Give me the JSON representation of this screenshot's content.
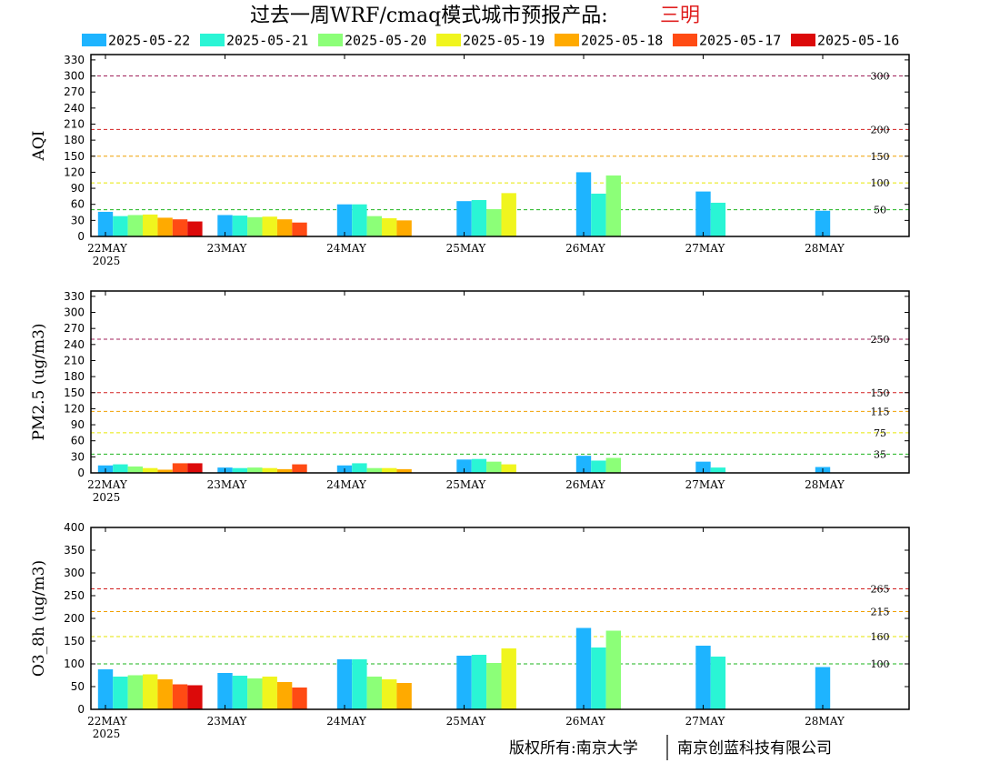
{
  "title": {
    "main": "过去一周WRF/cmaq模式城市预报产品:",
    "city": "三明",
    "city_color": "#e02020"
  },
  "footer": {
    "left": "版权所有:南京大学",
    "right": "南京创蓝科技有限公司"
  },
  "chart_data": {
    "type": "bar",
    "legend_placement": "top",
    "categories": [
      "22MAY",
      "23MAY",
      "24MAY",
      "25MAY",
      "26MAY",
      "27MAY",
      "28MAY"
    ],
    "year_label": "2025",
    "series": [
      {
        "name": "2025-05-22",
        "color": "#1eb4ff"
      },
      {
        "name": "2025-05-21",
        "color": "#2af5d5"
      },
      {
        "name": "2025-05-20",
        "color": "#8cff78"
      },
      {
        "name": "2025-05-19",
        "color": "#f0f51e"
      },
      {
        "name": "2025-05-18",
        "color": "#ffaa00"
      },
      {
        "name": "2025-05-17",
        "color": "#ff4b14"
      },
      {
        "name": "2025-05-16",
        "color": "#dc0a0a"
      }
    ],
    "panels": [
      {
        "ylabel": "AQI",
        "ylim": [
          0,
          340
        ],
        "yticks": [
          0,
          30,
          60,
          90,
          120,
          150,
          180,
          210,
          240,
          270,
          300,
          330
        ],
        "ref_lines": [
          {
            "value": 300,
            "label": "300",
            "color": "#a0205a"
          },
          {
            "value": 200,
            "label": "200",
            "color": "#d21e1e"
          },
          {
            "value": 150,
            "label": "150",
            "color": "#f0a000"
          },
          {
            "value": 100,
            "label": "100",
            "color": "#e6e600"
          },
          {
            "value": 50,
            "label": "50",
            "color": "#1eb41e"
          }
        ],
        "values": [
          [
            46,
            38,
            40,
            41,
            35,
            32,
            28
          ],
          [
            40,
            39,
            36,
            37,
            32,
            26
          ],
          [
            60,
            60,
            38,
            34,
            30
          ],
          [
            66,
            68,
            51,
            81
          ],
          [
            120,
            80,
            114
          ],
          [
            84,
            63
          ],
          [
            48
          ]
        ]
      },
      {
        "ylabel": "PM2.5 (ug/m3)",
        "ylim": [
          0,
          340
        ],
        "yticks": [
          0,
          30,
          60,
          90,
          120,
          150,
          180,
          210,
          240,
          270,
          300,
          330
        ],
        "ref_lines": [
          {
            "value": 250,
            "label": "250",
            "color": "#a0205a"
          },
          {
            "value": 150,
            "label": "150",
            "color": "#d21e1e"
          },
          {
            "value": 115,
            "label": "115",
            "color": "#f0a000"
          },
          {
            "value": 75,
            "label": "75",
            "color": "#e6e600"
          },
          {
            "value": 35,
            "label": "35",
            "color": "#1eb41e"
          }
        ],
        "values": [
          [
            14,
            16,
            12,
            9,
            6,
            18,
            18
          ],
          [
            10,
            9,
            10,
            9,
            7,
            16
          ],
          [
            14,
            18,
            9,
            9,
            7
          ],
          [
            25,
            26,
            21,
            16
          ],
          [
            32,
            23,
            28
          ],
          [
            21,
            10
          ],
          [
            11
          ]
        ]
      },
      {
        "ylabel": "O3_8h (ug/m3)",
        "ylim": [
          0,
          400
        ],
        "yticks": [
          0,
          50,
          100,
          150,
          200,
          250,
          300,
          350,
          400
        ],
        "ref_lines": [
          {
            "value": 265,
            "label": "265",
            "color": "#d21e1e"
          },
          {
            "value": 215,
            "label": "215",
            "color": "#f0a000"
          },
          {
            "value": 160,
            "label": "160",
            "color": "#e6e600"
          },
          {
            "value": 100,
            "label": "100",
            "color": "#1eb41e"
          }
        ],
        "values": [
          [
            88,
            72,
            75,
            77,
            66,
            55,
            53
          ],
          [
            80,
            74,
            68,
            72,
            60,
            48
          ],
          [
            110,
            110,
            72,
            66,
            58
          ],
          [
            118,
            120,
            102,
            134
          ],
          [
            179,
            136,
            173
          ],
          [
            140,
            116
          ],
          [
            93
          ]
        ]
      }
    ]
  }
}
